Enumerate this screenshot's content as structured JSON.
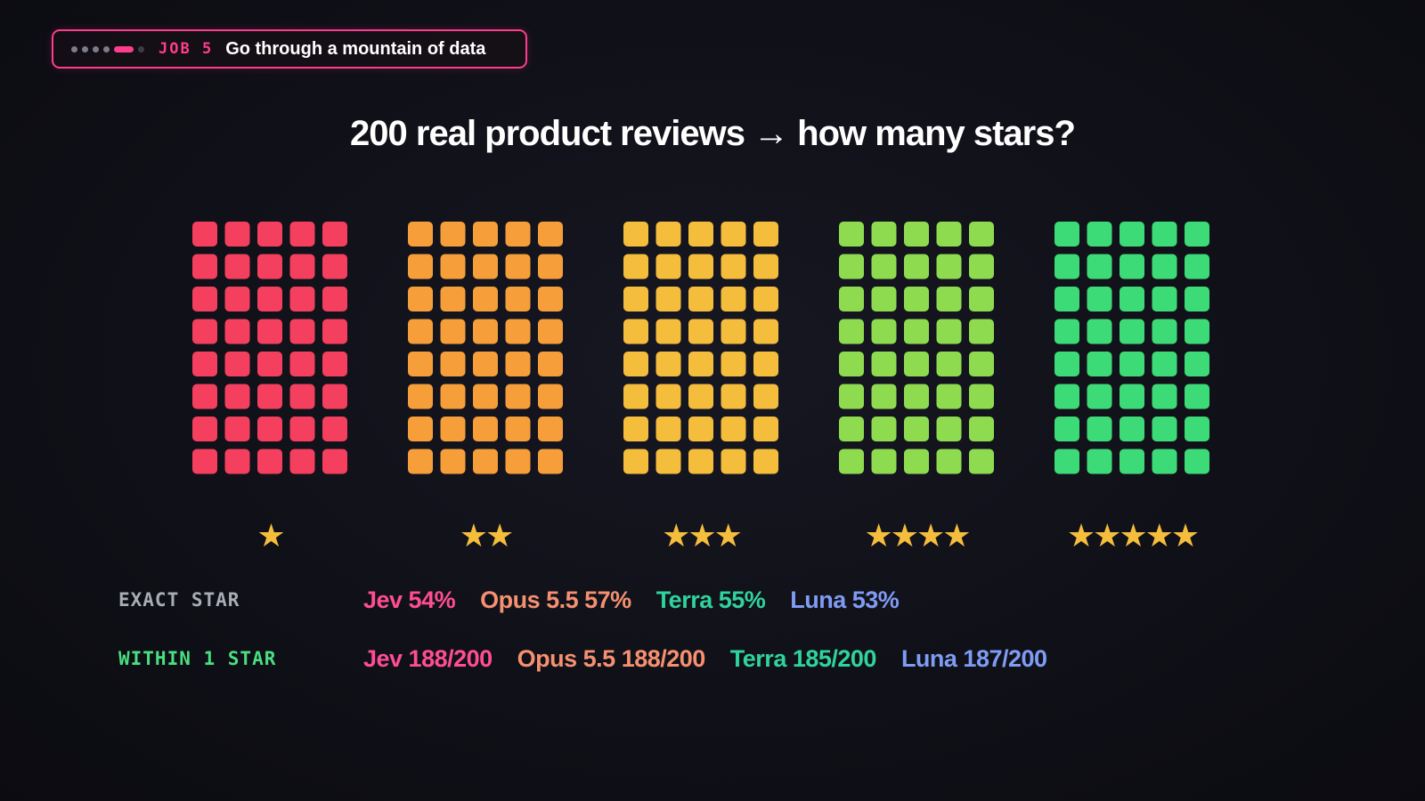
{
  "badge": {
    "job_label": "JOB 5",
    "title": "Go through a mountain of data",
    "progress_dots": 6,
    "active_dot": 4
  },
  "headline": "200 real product reviews → how many stars?",
  "chart_data": {
    "type": "waffle",
    "title": "200 real product reviews → how many stars?",
    "categories": [
      "★",
      "★★",
      "★★★",
      "★★★★",
      "★★★★★"
    ],
    "values": [
      40,
      40,
      40,
      40,
      40
    ],
    "grid": {
      "columns": 5,
      "rows": 8
    },
    "colors": [
      "#f43f5e",
      "#f59e3a",
      "#f5bd3c",
      "#8edb50",
      "#3ddb78"
    ],
    "star_color": "#f5bd3c"
  },
  "results": {
    "exact": {
      "label": "EXACT STAR",
      "scores": [
        {
          "text": "Jev 54%",
          "color": "#ff4d94"
        },
        {
          "text": "Opus 5.5 57%",
          "color": "#f59070"
        },
        {
          "text": "Terra 55%",
          "color": "#2fd39b"
        },
        {
          "text": "Luna 53%",
          "color": "#7f9cf5"
        }
      ]
    },
    "within": {
      "label": "WITHIN 1 STAR",
      "scores": [
        {
          "text": "Jev 188/200",
          "color": "#ff4d94"
        },
        {
          "text": "Opus 5.5 188/200",
          "color": "#f59070"
        },
        {
          "text": "Terra 185/200",
          "color": "#2fd39b"
        },
        {
          "text": "Luna 187/200",
          "color": "#7f9cf5"
        }
      ]
    }
  }
}
